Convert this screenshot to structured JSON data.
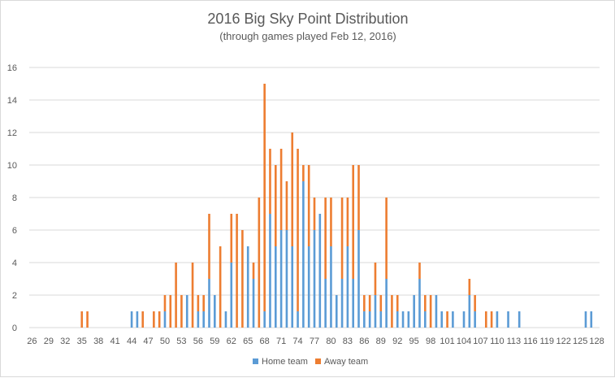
{
  "chart_data": {
    "type": "bar",
    "stacked": true,
    "title": "2016 Big Sky Point Distribution",
    "subtitle": "(through games played Feb 12, 2016)",
    "xlabel": "",
    "ylabel": "",
    "ylim": [
      0,
      16
    ],
    "yticks": [
      0,
      2,
      4,
      6,
      8,
      10,
      12,
      14,
      16
    ],
    "x_min": 26,
    "x_max": 128,
    "xtick_labels": [
      "26",
      "29",
      "32",
      "35",
      "38",
      "41",
      "44",
      "47",
      "50",
      "53",
      "56",
      "59",
      "62",
      "65",
      "68",
      "71",
      "74",
      "77",
      "80",
      "83",
      "86",
      "89",
      "92",
      "95",
      "98",
      "101",
      "104",
      "107",
      "110",
      "113",
      "116",
      "119",
      "122",
      "125",
      "128"
    ],
    "grid": true,
    "legend_position": "bottom",
    "colors": {
      "home": "#5B9BD5",
      "away": "#ED7D31"
    },
    "categories": [
      35,
      36,
      44,
      45,
      46,
      48,
      49,
      50,
      51,
      52,
      53,
      54,
      55,
      56,
      57,
      58,
      59,
      60,
      61,
      62,
      63,
      64,
      65,
      66,
      67,
      68,
      69,
      70,
      71,
      72,
      73,
      74,
      75,
      76,
      77,
      78,
      79,
      80,
      81,
      82,
      83,
      84,
      85,
      86,
      87,
      88,
      89,
      90,
      91,
      92,
      93,
      94,
      95,
      96,
      97,
      98,
      99,
      100,
      101,
      102,
      104,
      105,
      106,
      108,
      109,
      110,
      112,
      114,
      126,
      127
    ],
    "series": [
      {
        "name": "Home team",
        "values": [
          0,
          0,
          1,
          1,
          0,
          0,
          0,
          1,
          0,
          0,
          0,
          2,
          0,
          1,
          1,
          3,
          2,
          0,
          1,
          4,
          0,
          0,
          5,
          3,
          0,
          1,
          7,
          5,
          6,
          6,
          5,
          1,
          9,
          5,
          6,
          7,
          3,
          5,
          2,
          3,
          5,
          3,
          6,
          1,
          1,
          2,
          1,
          3,
          0,
          1,
          1,
          1,
          2,
          3,
          1,
          0,
          2,
          1,
          0,
          1,
          1,
          2,
          1,
          0,
          0,
          1,
          1,
          1,
          1,
          1
        ]
      },
      {
        "name": "Away team",
        "values": [
          1,
          1,
          0,
          0,
          1,
          1,
          1,
          1,
          2,
          4,
          2,
          0,
          4,
          1,
          1,
          4,
          0,
          5,
          0,
          3,
          7,
          6,
          0,
          1,
          8,
          14,
          4,
          5,
          5,
          3,
          7,
          10,
          1,
          5,
          2,
          0,
          5,
          3,
          0,
          5,
          3,
          7,
          4,
          1,
          1,
          2,
          1,
          5,
          2,
          1,
          0,
          0,
          0,
          1,
          1,
          2,
          0,
          0,
          1,
          0,
          0,
          1,
          1,
          1,
          1,
          0,
          0,
          0,
          0,
          0
        ]
      }
    ]
  }
}
